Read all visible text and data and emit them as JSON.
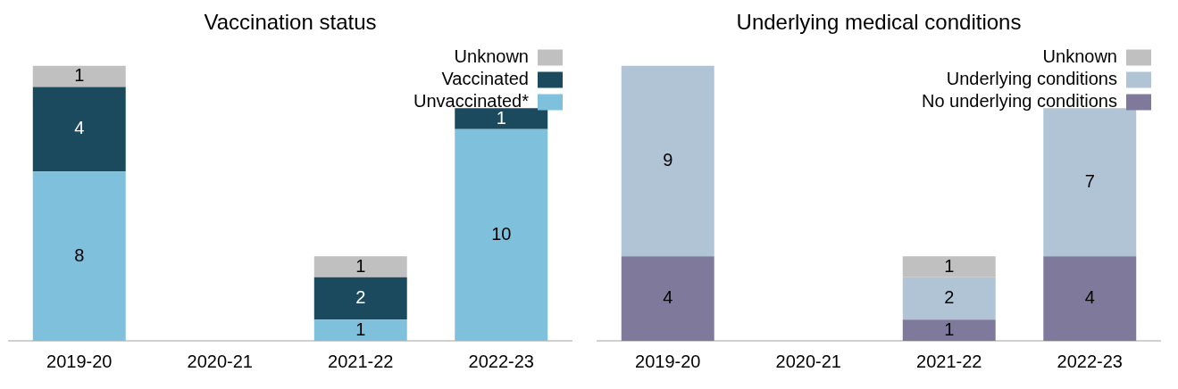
{
  "chart_data": [
    {
      "type": "bar",
      "title": "Vaccination status",
      "categories": [
        "2019-20",
        "2020-21",
        "2021-22",
        "2022-23"
      ],
      "stacked": true,
      "data_labels": true,
      "legend": "top right",
      "grid": false,
      "series": [
        {
          "name": "Unvaccinated*",
          "color": "#7fc0dc",
          "values": [
            8,
            null,
            1,
            10
          ]
        },
        {
          "name": "Vaccinated",
          "color": "#1b4a5f",
          "values": [
            4,
            null,
            2,
            1
          ]
        },
        {
          "name": "Unknown",
          "color": "#c0c0c0",
          "values": [
            1,
            null,
            1,
            null
          ]
        }
      ]
    },
    {
      "type": "bar",
      "title": "Underlying medical conditions",
      "categories": [
        "2019-20",
        "2020-21",
        "2021-22",
        "2022-23"
      ],
      "stacked": true,
      "data_labels": true,
      "legend": "top right",
      "grid": false,
      "series": [
        {
          "name": "No underlying conditions",
          "color": "#7f7a9c",
          "values": [
            4,
            null,
            1,
            4
          ]
        },
        {
          "name": "Underlying conditions",
          "color": "#b0c4d6",
          "values": [
            9,
            null,
            2,
            7
          ]
        },
        {
          "name": "Unknown",
          "color": "#c0c0c0",
          "values": [
            null,
            null,
            1,
            null
          ]
        }
      ]
    }
  ]
}
